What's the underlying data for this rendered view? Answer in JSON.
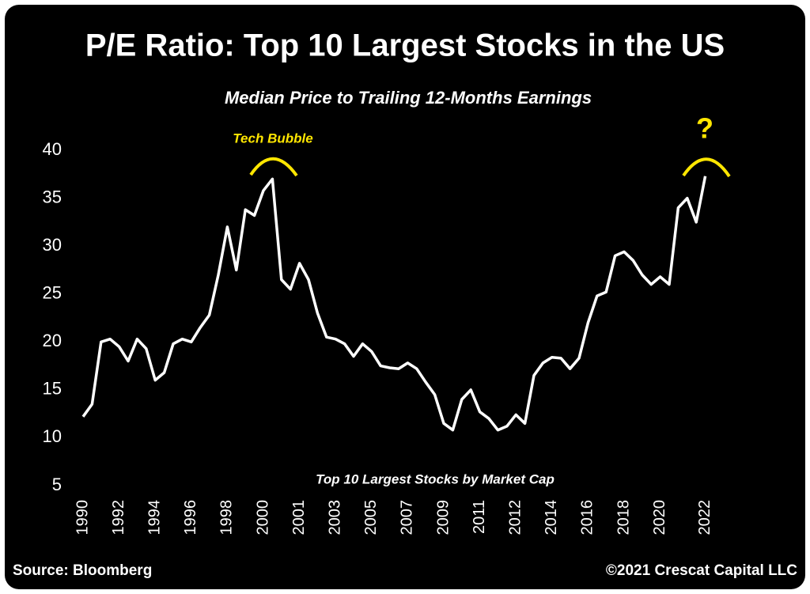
{
  "chart_data": {
    "type": "line",
    "title": "P/E Ratio: Top 10 Largest Stocks in the US",
    "subtitle": "Median Price to Trailing 12-Months Earnings",
    "annotations": [
      "Tech Bubble",
      "?"
    ],
    "note": "Top 10 Largest Stocks by Market Cap",
    "source": "Source: Bloomberg",
    "credit": "©2021 Crescat Capital LLC",
    "categories": [
      "1990",
      null,
      null,
      null,
      "1992",
      null,
      null,
      null,
      "1994",
      null,
      null,
      null,
      "1996",
      null,
      null,
      null,
      "1998",
      null,
      null,
      null,
      "2000",
      null,
      null,
      null,
      "2001",
      null,
      null,
      null,
      "2003",
      null,
      null,
      null,
      "2005",
      null,
      null,
      null,
      "2007",
      null,
      null,
      null,
      "2009",
      null,
      null,
      null,
      "2011",
      null,
      null,
      null,
      "2012",
      null,
      null,
      null,
      "2014",
      null,
      null,
      null,
      "2016",
      null,
      null,
      null,
      "2018",
      null,
      null,
      null,
      "2020",
      null,
      null,
      null,
      null,
      "2022"
    ],
    "values": [
      12.2,
      13.5,
      20,
      20.3,
      19.5,
      18,
      20.3,
      19.3,
      16,
      16.8,
      19.8,
      20.3,
      20,
      21.5,
      22.8,
      27,
      32,
      27.5,
      33.8,
      33.2,
      35.8,
      37,
      26.5,
      25.5,
      28.2,
      26.5,
      23,
      20.5,
      20.3,
      19.8,
      18.5,
      19.8,
      19,
      17.5,
      17.3,
      17.2,
      17.8,
      17.2,
      15.8,
      14.5,
      11.5,
      10.8,
      14,
      15,
      12.7,
      12,
      10.8,
      11.2,
      12.4,
      11.5,
      16.5,
      17.8,
      18.4,
      18.3,
      17.2,
      18.3,
      22,
      24.8,
      25.2,
      29,
      29.4,
      28.5,
      27,
      26,
      26.8,
      26,
      34,
      35,
      32.5,
      37.3
    ],
    "color": "#ffffff",
    "annotation_color": "#ffe600",
    "ylim": [
      5,
      40
    ],
    "yticks": [
      5,
      10,
      15,
      20,
      25,
      30,
      35,
      40
    ],
    "grid": false
  }
}
